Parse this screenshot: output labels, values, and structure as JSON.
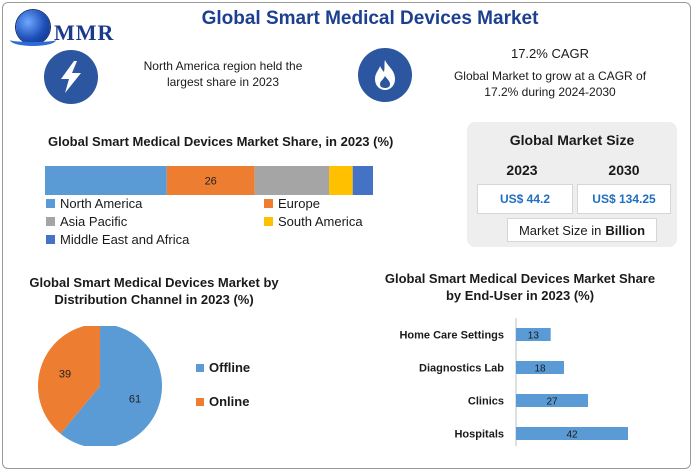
{
  "header": {
    "brand": "MMR",
    "title": "Global Smart Medical Devices Market",
    "icons": [
      "lightning-icon",
      "flame-icon"
    ]
  },
  "highlights": {
    "north_america": "North America region held the largest share in 2023",
    "cagr_title": "17.2% CAGR",
    "cagr_text": "Global Market to grow at a CAGR of 17.2% during 2024-2030"
  },
  "market_size": {
    "title": "Global Market Size",
    "year_2023": "2023",
    "year_2030": "2030",
    "value_2023": "US$ 44.2",
    "value_2030": "US$ 134.25",
    "unit_prefix": "Market Size in",
    "unit_bold": "Billion"
  },
  "chart_data": [
    {
      "type": "bar",
      "orientation": "horizontal-stacked",
      "title": "Global Smart Medical Devices Market Share, in 2023 (%)",
      "series": [
        {
          "name": "North America",
          "value": 36,
          "label": "",
          "color": "#5b9bd5"
        },
        {
          "name": "Europe",
          "value": 26,
          "label": "26",
          "color": "#ed7d31"
        },
        {
          "name": "Asia Pacific",
          "value": 22,
          "label": "",
          "color": "#a5a5a5"
        },
        {
          "name": "South America",
          "value": 7,
          "label": "",
          "color": "#ffc000"
        },
        {
          "name": "Middle East and Africa",
          "value": 6,
          "label": "",
          "color": "#4472c4"
        }
      ],
      "legend": "bottom"
    },
    {
      "type": "pie",
      "title": "Global Smart Medical Devices Market by Distribution Channel in 2023 (%)",
      "slices": [
        {
          "name": "Offline",
          "value": 61,
          "color": "#5b9bd5"
        },
        {
          "name": "Online",
          "value": 39,
          "color": "#ed7d31"
        }
      ],
      "legend": "right"
    },
    {
      "type": "bar",
      "orientation": "horizontal",
      "title": "Global Smart Medical Devices Market Share by End-User in 2023 (%)",
      "categories": [
        "Home Care Settings",
        "Diagnostics Lab",
        "Clinics",
        "Hospitals"
      ],
      "values": [
        13,
        18,
        27,
        42
      ],
      "color": "#5b9bd5"
    }
  ]
}
